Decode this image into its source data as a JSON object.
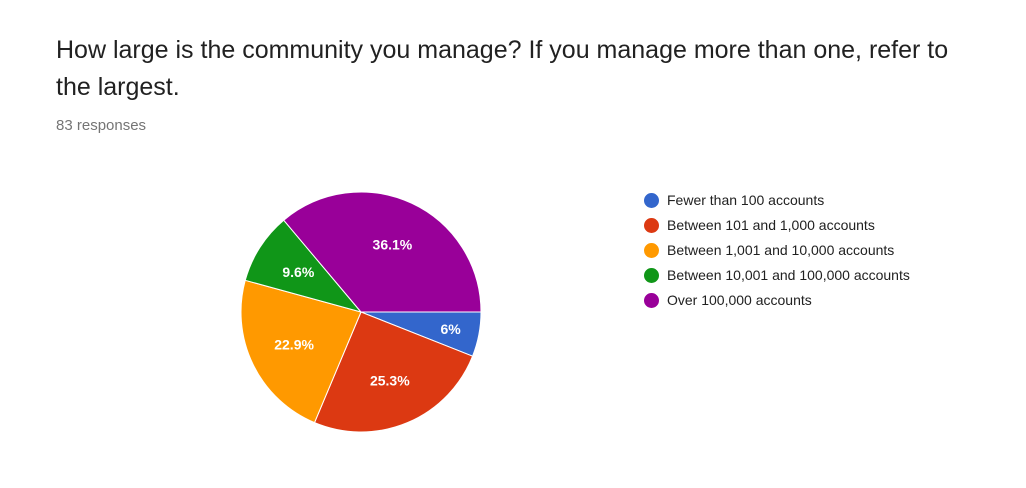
{
  "question": {
    "title": "How large is the community you manage? If you manage more than one, refer to the largest.",
    "responses": "83 responses"
  },
  "chart_data": {
    "type": "pie",
    "title": "",
    "slices": [
      {
        "label": "Fewer than 100 accounts",
        "value": 6,
        "display": "6%",
        "color": "#3366cc"
      },
      {
        "label": "Between 101 and 1,000 accounts",
        "value": 25.3,
        "display": "25.3%",
        "color": "#dc3912"
      },
      {
        "label": "Between 1,001 and 10,000 accounts",
        "value": 22.9,
        "display": "22.9%",
        "color": "#ff9900"
      },
      {
        "label": "Between 10,001 and 100,000 accounts",
        "value": 9.6,
        "display": "9.6%",
        "color": "#109618"
      },
      {
        "label": "Over 100,000 accounts",
        "value": 36.1,
        "display": "36.1%",
        "color": "#990099"
      }
    ],
    "legend_position": "right"
  }
}
